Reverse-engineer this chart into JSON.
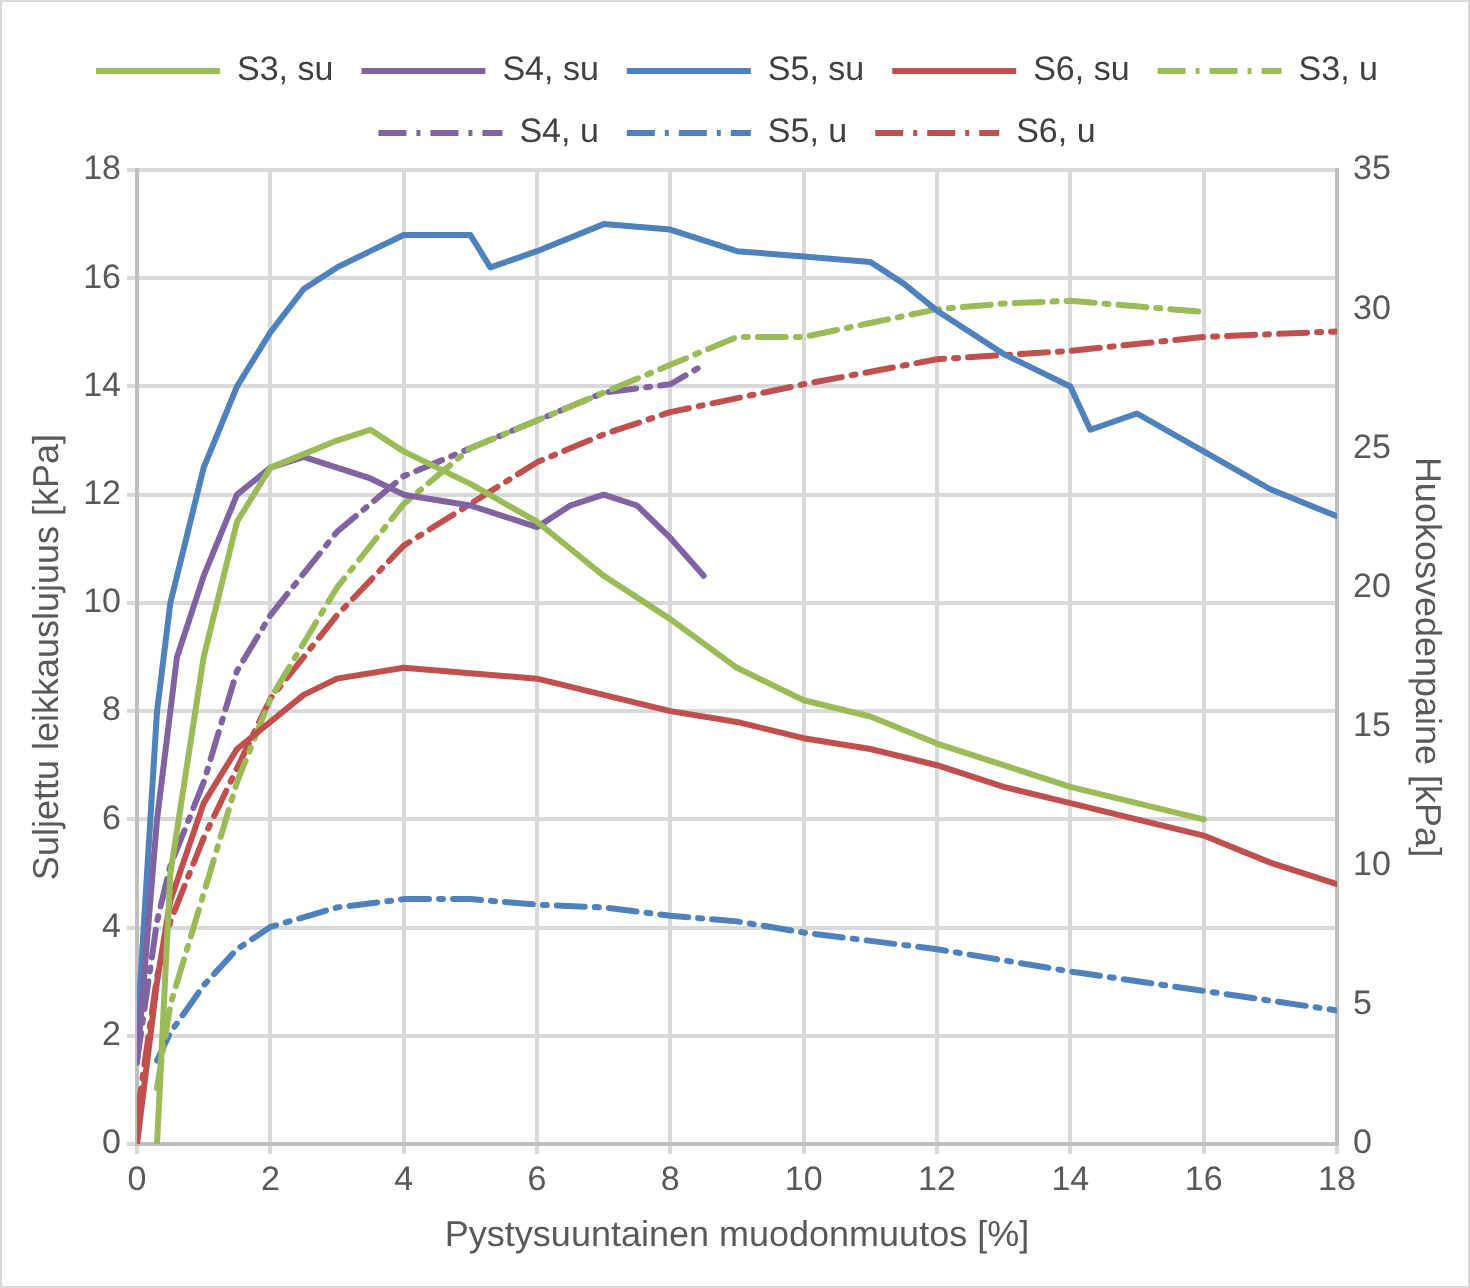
{
  "chart_data": {
    "type": "line",
    "xlabel": "Pystysuuntainen muodonmuutos [%]",
    "ylabel": "Suljettu leikkauslujuus [kPa]",
    "y2label": "Huokosvedenpaine [kPa]",
    "xlim": [
      0,
      18
    ],
    "xticks": [
      0,
      2,
      4,
      6,
      8,
      10,
      12,
      14,
      16,
      18
    ],
    "ylim": [
      0,
      18
    ],
    "yticks": [
      0,
      2,
      4,
      6,
      8,
      10,
      12,
      14,
      16,
      18
    ],
    "y2lim": [
      0,
      35
    ],
    "y2ticks": [
      0,
      5,
      10,
      15,
      20,
      25,
      30,
      35
    ],
    "grid": true,
    "legend": "top",
    "marker": "none",
    "series": [
      {
        "name": "S3, su",
        "color": "#9bbb59",
        "line_style": "solid",
        "x": [
          0.3,
          0.5,
          1,
          1.5,
          2,
          3,
          3.5,
          4,
          5,
          6,
          6.5,
          7,
          8,
          9,
          10,
          11,
          12,
          13,
          14,
          15,
          16
        ],
        "values": [
          0,
          5,
          9,
          11.5,
          12.5,
          13,
          13.2,
          12.8,
          12.2,
          11.5,
          11,
          10.5,
          9.7,
          8.8,
          8.2,
          7.9,
          7.4,
          7,
          6.6,
          6.3,
          6
        ]
      },
      {
        "name": "S4, su",
        "color": "#8064a2",
        "line_style": "solid",
        "x": [
          0,
          0.3,
          0.6,
          1,
          1.5,
          2,
          2.5,
          3,
          3.5,
          4,
          5,
          6,
          6.5,
          7,
          7.5,
          8,
          8.5
        ],
        "values": [
          1.5,
          6,
          9,
          10.5,
          12,
          12.5,
          12.7,
          12.5,
          12.3,
          12,
          11.8,
          11.4,
          11.8,
          12,
          11.8,
          11.2,
          10.5
        ]
      },
      {
        "name": "S5, su",
        "color": "#4f81bd",
        "line_style": "solid",
        "x": [
          0,
          0.3,
          0.5,
          0.8,
          1,
          1.5,
          2,
          2.5,
          3,
          3.5,
          4,
          5,
          5.3,
          6,
          7,
          8,
          9,
          10,
          11,
          11.5,
          12,
          13,
          14,
          14.3,
          15,
          16,
          17,
          18
        ],
        "values": [
          2,
          8,
          10,
          11.5,
          12.5,
          14,
          15,
          15.8,
          16.2,
          16.5,
          16.8,
          16.8,
          16.2,
          16.5,
          17,
          16.9,
          16.5,
          16.4,
          16.3,
          15.9,
          15.4,
          14.6,
          14,
          13.2,
          13.5,
          12.8,
          12.1,
          11.6
        ]
      },
      {
        "name": "S6, su",
        "color": "#c0504d",
        "line_style": "solid",
        "x": [
          0,
          0.3,
          0.5,
          1,
          1.5,
          2,
          2.5,
          3,
          4,
          5,
          6,
          7,
          8,
          9,
          10,
          11,
          12,
          13,
          14,
          15,
          16,
          17,
          18
        ],
        "values": [
          0,
          3,
          4.5,
          6.3,
          7.3,
          7.8,
          8.3,
          8.6,
          8.8,
          8.7,
          8.6,
          8.3,
          8,
          7.8,
          7.5,
          7.3,
          7,
          6.6,
          6.3,
          6,
          5.7,
          5.2,
          4.8
        ]
      },
      {
        "name": "S3, u",
        "color": "#9bbb59",
        "line_style": "dashdot",
        "axis": "y2",
        "x": [
          0.3,
          0.5,
          1,
          1.5,
          2,
          3,
          4,
          5,
          6,
          7,
          8,
          9,
          10,
          11,
          12,
          13,
          14,
          15,
          16
        ],
        "values": [
          2,
          5,
          9,
          13,
          16,
          20,
          23,
          25,
          26,
          27,
          28,
          29,
          29,
          29.5,
          30,
          30.2,
          30.3,
          30.1,
          29.9
        ]
      },
      {
        "name": "S4, u",
        "color": "#8064a2",
        "line_style": "dashdot",
        "axis": "y2",
        "x": [
          0,
          0.3,
          0.5,
          1,
          1.5,
          2,
          3,
          4,
          5,
          6,
          7,
          8,
          8.5
        ],
        "values": [
          3,
          8,
          10,
          13,
          17,
          19,
          22,
          24,
          25,
          26,
          27,
          27.3,
          28
        ]
      },
      {
        "name": "S5, u",
        "color": "#4f81bd",
        "line_style": "dashdot",
        "axis": "y2",
        "x": [
          0.3,
          0.5,
          1,
          1.5,
          2,
          3,
          4,
          5,
          6,
          7,
          8,
          9,
          10,
          12,
          14,
          16,
          18
        ],
        "values": [
          3,
          4,
          5.7,
          7,
          7.8,
          8.5,
          8.8,
          8.8,
          8.6,
          8.5,
          8.2,
          8,
          7.6,
          7,
          6.2,
          5.5,
          4.8
        ]
      },
      {
        "name": "S6, u",
        "color": "#c0504d",
        "line_style": "dashdot",
        "axis": "y2",
        "x": [
          0,
          0.3,
          0.5,
          1,
          1.5,
          2,
          3,
          4,
          5,
          6,
          7,
          8,
          10,
          12,
          14,
          16,
          18
        ],
        "values": [
          1,
          6,
          8,
          11,
          13.5,
          16,
          19,
          21.5,
          23,
          24.5,
          25.5,
          26.3,
          27.3,
          28.2,
          28.5,
          29,
          29.2
        ]
      }
    ]
  }
}
